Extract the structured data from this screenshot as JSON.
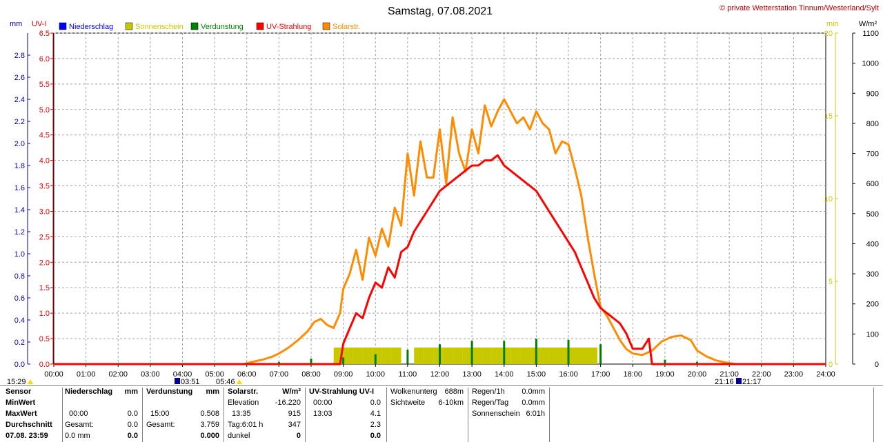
{
  "header": {
    "title": "Samstag, 07.08.2021",
    "credit": "© private Wetterstation Tinnum/Westerland/Sylt"
  },
  "units": {
    "mm": "mm",
    "uvi": "UV-I",
    "min": "min",
    "wm2": "W/m²"
  },
  "colors": {
    "niederschlag": "#0000ff",
    "sonnenschein": "#c8c800",
    "verdunstung": "#008000",
    "uv": "#ff0000",
    "solar": "#ff8c00",
    "grid": "#a0a0a0",
    "axis_left1": "#0000b0",
    "axis_left2": "#e00000",
    "axis_right1": "#c8c800"
  },
  "legend": [
    {
      "label": "Niederschlag",
      "color": "#0000ff"
    },
    {
      "label": "Sonnenschein",
      "color": "#c8c800"
    },
    {
      "label": "Verdunstung",
      "color": "#008000"
    },
    {
      "label": "UV-Strahlung",
      "color": "#ff0000"
    },
    {
      "label": "Solarstr.",
      "color": "#ff8c00"
    }
  ],
  "axis_labels": {
    "x": [
      "00:00",
      "01:00",
      "02:00",
      "03:00",
      "04:00",
      "05:00",
      "06:00",
      "07:00",
      "08:00",
      "09:00",
      "10:00",
      "11:00",
      "12:00",
      "13:00",
      "14:00",
      "15:00",
      "16:00",
      "17:00",
      "18:00",
      "19:00",
      "20:00",
      "21:00",
      "22:00",
      "23:00",
      "24:00"
    ],
    "mm": [
      "0.0",
      "0.2",
      "0.4",
      "0.6",
      "0.8",
      "1.0",
      "1.2",
      "1.4",
      "1.6",
      "1.8",
      "2.0",
      "2.2",
      "2.4",
      "2.6",
      "2.8"
    ],
    "uvi": [
      "0.0",
      "0.5",
      "1.0",
      "1.5",
      "2.0",
      "2.5",
      "3.0",
      "3.5",
      "4.0",
      "4.5",
      "5.0",
      "5.5",
      "6.0",
      "6.5"
    ],
    "min": [
      "0",
      "5",
      "10",
      "15",
      "20"
    ],
    "wm2": [
      "0",
      "100",
      "200",
      "300",
      "400",
      "500",
      "600",
      "700",
      "800",
      "900",
      "1000",
      "1100"
    ]
  },
  "sun_marks": {
    "moonset": "15:29",
    "sunrise": "03:51",
    "dawn": "05:46",
    "sunset": "21:16",
    "dusk": "21:17"
  },
  "chart_data": {
    "type": "line",
    "title": "Samstag, 07.08.2021",
    "xlim": [
      0,
      24
    ],
    "axes": {
      "niederschlag_mm": [
        0,
        3.0
      ],
      "uv_index": [
        0,
        6.5
      ],
      "sonnenschein_min": [
        0,
        20
      ],
      "solar_wm2": [
        0,
        1100
      ]
    },
    "grid": true,
    "legend_position": "top-left",
    "series": [
      {
        "name": "Solarstr.",
        "axis": "solar_wm2",
        "kind": "line",
        "x": [
          0,
          5.9,
          6.2,
          6.5,
          6.8,
          7.0,
          7.3,
          7.6,
          7.9,
          8.1,
          8.3,
          8.5,
          8.7,
          8.9,
          9.0,
          9.2,
          9.4,
          9.6,
          9.8,
          10.0,
          10.2,
          10.4,
          10.6,
          10.8,
          11.0,
          11.2,
          11.4,
          11.6,
          11.8,
          12.0,
          12.2,
          12.4,
          12.6,
          12.8,
          13.0,
          13.2,
          13.4,
          13.6,
          13.8,
          14.0,
          14.2,
          14.4,
          14.6,
          14.8,
          15.0,
          15.2,
          15.4,
          15.6,
          15.8,
          16.0,
          16.2,
          16.4,
          16.6,
          16.8,
          17.0,
          17.2,
          17.4,
          17.6,
          17.8,
          18.0,
          18.3,
          18.6,
          18.9,
          19.2,
          19.5,
          19.8,
          20.0,
          20.3,
          20.6,
          20.9,
          21.2,
          24
        ],
        "y": [
          0,
          0,
          8,
          15,
          25,
          35,
          55,
          80,
          110,
          140,
          150,
          130,
          120,
          170,
          250,
          300,
          380,
          280,
          420,
          360,
          450,
          390,
          520,
          460,
          700,
          560,
          740,
          620,
          620,
          780,
          600,
          820,
          700,
          640,
          780,
          700,
          860,
          790,
          840,
          880,
          840,
          800,
          820,
          780,
          840,
          800,
          780,
          700,
          740,
          730,
          650,
          560,
          420,
          300,
          190,
          160,
          120,
          80,
          50,
          35,
          30,
          45,
          75,
          90,
          95,
          80,
          45,
          25,
          12,
          5,
          0,
          0
        ]
      },
      {
        "name": "UV-Strahlung",
        "axis": "uv_index",
        "kind": "line",
        "x": [
          0,
          8.9,
          9.0,
          9.2,
          9.4,
          9.6,
          9.8,
          10.0,
          10.2,
          10.4,
          10.6,
          10.8,
          11.0,
          11.2,
          11.4,
          11.6,
          11.8,
          12.0,
          12.2,
          12.4,
          12.6,
          12.8,
          13.0,
          13.2,
          13.4,
          13.6,
          13.8,
          14.0,
          14.2,
          14.4,
          14.6,
          14.8,
          15.0,
          15.2,
          15.4,
          15.6,
          15.8,
          16.0,
          16.2,
          16.4,
          16.6,
          16.8,
          17.0,
          17.2,
          17.4,
          17.6,
          17.8,
          18.0,
          18.3,
          18.5,
          18.6,
          24
        ],
        "y": [
          0,
          0,
          0.4,
          0.7,
          1.0,
          0.9,
          1.3,
          1.6,
          1.5,
          1.9,
          1.7,
          2.2,
          2.3,
          2.6,
          2.8,
          3.0,
          3.2,
          3.4,
          3.5,
          3.6,
          3.7,
          3.8,
          3.9,
          3.9,
          4.0,
          4.0,
          4.1,
          3.9,
          3.8,
          3.7,
          3.6,
          3.5,
          3.4,
          3.2,
          3.0,
          2.8,
          2.6,
          2.4,
          2.2,
          1.9,
          1.6,
          1.3,
          1.1,
          1.0,
          0.9,
          0.8,
          0.6,
          0.3,
          0.3,
          0.5,
          0,
          0
        ]
      },
      {
        "name": "Sonnenschein",
        "axis": "sonnenschein_min",
        "kind": "bars",
        "x": [
          8.7,
          9.0,
          9.3,
          9.6,
          9.9,
          10.2,
          10.5,
          11.2,
          11.5,
          11.8,
          12.1,
          12.4,
          12.7,
          13.0,
          13.3,
          13.6,
          13.9,
          14.2,
          14.5,
          14.8,
          15.1,
          15.4,
          15.7,
          16.0,
          16.3,
          16.6
        ],
        "y": [
          1.0,
          1.0,
          1.0,
          1.0,
          1.0,
          1.0,
          1.0,
          1.0,
          1.0,
          1.0,
          1.0,
          1.0,
          1.0,
          1.0,
          1.0,
          1.0,
          1.0,
          1.0,
          1.0,
          1.0,
          1.0,
          1.0,
          1.0,
          1.0,
          1.0,
          1.0
        ]
      },
      {
        "name": "Verdunstung",
        "axis": "niederschlag_mm",
        "kind": "bars",
        "x": [
          1,
          2,
          3,
          4,
          5,
          6,
          7,
          8,
          9,
          10,
          11,
          12,
          13,
          14,
          15,
          16,
          17,
          19,
          20,
          21,
          22,
          23
        ],
        "y": [
          0.01,
          0.01,
          0.01,
          0.01,
          0.01,
          0.01,
          0.02,
          0.05,
          0.06,
          0.09,
          0.13,
          0.18,
          0.21,
          0.21,
          0.23,
          0.22,
          0.18,
          0.04,
          0.02,
          0.01,
          0.01,
          0.01
        ]
      }
    ]
  },
  "stats": {
    "rowlabels": [
      "Sensor",
      "MinWert",
      "MaxWert",
      "Durchschnitt",
      "07.08. 23:59"
    ],
    "niederschlag": {
      "header": "Niederschlag",
      "unit": "mm",
      "max_time": "00:00",
      "max_val": "0.0",
      "gesamt_label": "Gesamt:",
      "gesamt": "0.0",
      "last": "0.0 mm",
      "last_val": "0.0"
    },
    "verdunstung": {
      "header": "Verdunstung",
      "unit": "mm",
      "max_time": "15:00",
      "max_val": "0.508",
      "gesamt_label": "Gesamt:",
      "gesamt": "3.759",
      "last_val": "0.000"
    },
    "solar": {
      "header": "Solarstr.",
      "unit": "W/m²",
      "elev_label": "Elevation",
      "elev": "-16.220",
      "max_time": "13:35",
      "max_val": "915",
      "tag_label": "Tag:6:01 h",
      "tag": "347",
      "dunkel_label": "dunkel",
      "dunkel": "0"
    },
    "uv": {
      "header": "UV-Strahlung UV-I",
      "min_time": "00:00",
      "min_val": "0.0",
      "max_time": "13:03",
      "max_val": "4.1",
      "avg": "2.3",
      "last": "0.0"
    },
    "weather": {
      "wolken_label": "Wolkenunterg",
      "wolken": "688m",
      "sicht_label": "Sichtweite",
      "sicht": "6-10km"
    },
    "regen": {
      "r1_label": "Regen/1h",
      "r1": "0.0mm",
      "rt_label": "Regen/Tag",
      "rt": "0.0mm",
      "sonne_label": "Sonnenschein",
      "sonne": "6:01h"
    }
  }
}
